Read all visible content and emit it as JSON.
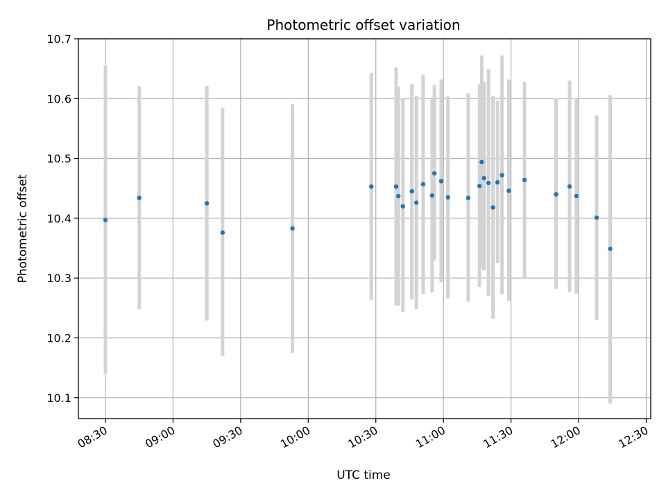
{
  "chart_data": {
    "type": "scatter",
    "title": "Photometric offset variation",
    "xlabel": "UTC time",
    "ylabel": "Photometric offset",
    "x_range": [
      "08:18",
      "12:32"
    ],
    "ylim": [
      10.065,
      10.7
    ],
    "grid": true,
    "x_ticks": [
      "08:30",
      "09:00",
      "09:30",
      "10:00",
      "10:30",
      "11:00",
      "11:30",
      "12:00",
      "12:30"
    ],
    "y_ticks": [
      "10.1",
      "10.2",
      "10.3",
      "10.4",
      "10.5",
      "10.6",
      "10.7"
    ],
    "colors": {
      "point": "#1f77b4",
      "errorbar": "#d3d3d3",
      "grid": "#b0b0b0"
    },
    "points": [
      {
        "t": "08:30",
        "y": 10.397,
        "lo": 10.14,
        "hi": 10.655
      },
      {
        "t": "08:45",
        "y": 10.434,
        "lo": 10.248,
        "hi": 10.621
      },
      {
        "t": "09:15",
        "y": 10.425,
        "lo": 10.229,
        "hi": 10.621
      },
      {
        "t": "09:22",
        "y": 10.376,
        "lo": 10.17,
        "hi": 10.584
      },
      {
        "t": "09:53",
        "y": 10.383,
        "lo": 10.175,
        "hi": 10.591
      },
      {
        "t": "10:28",
        "y": 10.453,
        "lo": 10.263,
        "hi": 10.643
      },
      {
        "t": "10:39",
        "y": 10.453,
        "lo": 10.254,
        "hi": 10.652
      },
      {
        "t": "10:40",
        "y": 10.437,
        "lo": 10.254,
        "hi": 10.62
      },
      {
        "t": "10:42",
        "y": 10.42,
        "lo": 10.243,
        "hi": 10.601
      },
      {
        "t": "10:46",
        "y": 10.445,
        "lo": 10.264,
        "hi": 10.625
      },
      {
        "t": "10:48",
        "y": 10.426,
        "lo": 10.248,
        "hi": 10.605
      },
      {
        "t": "10:51",
        "y": 10.457,
        "lo": 10.273,
        "hi": 10.64
      },
      {
        "t": "10:55",
        "y": 10.438,
        "lo": 10.276,
        "hi": 10.602
      },
      {
        "t": "10:56",
        "y": 10.475,
        "lo": 10.329,
        "hi": 10.623
      },
      {
        "t": "10:59",
        "y": 10.462,
        "lo": 10.293,
        "hi": 10.632
      },
      {
        "t": "11:02",
        "y": 10.435,
        "lo": 10.266,
        "hi": 10.604
      },
      {
        "t": "11:11",
        "y": 10.434,
        "lo": 10.261,
        "hi": 10.609
      },
      {
        "t": "11:16",
        "y": 10.454,
        "lo": 10.285,
        "hi": 10.624
      },
      {
        "t": "11:17",
        "y": 10.494,
        "lo": 10.318,
        "hi": 10.672
      },
      {
        "t": "11:18",
        "y": 10.467,
        "lo": 10.313,
        "hi": 10.628
      },
      {
        "t": "11:20",
        "y": 10.459,
        "lo": 10.27,
        "hi": 10.649
      },
      {
        "t": "11:22",
        "y": 10.418,
        "lo": 10.232,
        "hi": 10.604
      },
      {
        "t": "11:24",
        "y": 10.46,
        "lo": 10.325,
        "hi": 10.597
      },
      {
        "t": "11:26",
        "y": 10.472,
        "lo": 10.273,
        "hi": 10.672
      },
      {
        "t": "11:29",
        "y": 10.446,
        "lo": 10.262,
        "hi": 10.632
      },
      {
        "t": "11:36",
        "y": 10.464,
        "lo": 10.3,
        "hi": 10.628
      },
      {
        "t": "11:50",
        "y": 10.44,
        "lo": 10.282,
        "hi": 10.6
      },
      {
        "t": "11:56",
        "y": 10.453,
        "lo": 10.277,
        "hi": 10.63
      },
      {
        "t": "11:59",
        "y": 10.437,
        "lo": 10.274,
        "hi": 10.6
      },
      {
        "t": "12:08",
        "y": 10.401,
        "lo": 10.23,
        "hi": 10.572
      },
      {
        "t": "12:14",
        "y": 10.349,
        "lo": 10.09,
        "hi": 10.606
      }
    ]
  }
}
